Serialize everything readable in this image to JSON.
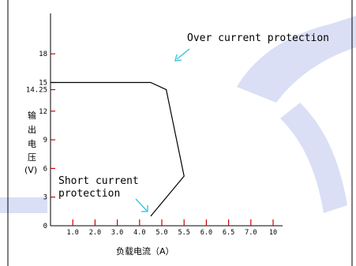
{
  "chart_data": {
    "type": "line",
    "series": [
      {
        "x": [
          0,
          4.5,
          5.2,
          6.0,
          4.5
        ],
        "y": [
          15,
          15,
          14.25,
          5.2,
          1.0
        ]
      }
    ],
    "xlabel": "负载电流（A）",
    "ylabel_chars": [
      "输",
      "出",
      "电",
      "压",
      "(V)"
    ],
    "y_ticks": [
      {
        "v": 0,
        "label": "0"
      },
      {
        "v": 3,
        "label": "3"
      },
      {
        "v": 6,
        "label": "6"
      },
      {
        "v": 9,
        "label": "9"
      },
      {
        "v": 12,
        "label": "12"
      },
      {
        "v": 14.25,
        "label": "14.25"
      },
      {
        "v": 15,
        "label": "15"
      },
      {
        "v": 18,
        "label": "18"
      }
    ],
    "x_ticks": [
      "1.0",
      "2.0",
      "3.0",
      "4.0",
      "5.0",
      "5.5",
      "6.0",
      "6.5",
      "7.0",
      "10"
    ],
    "ylim": [
      0,
      20
    ],
    "annotations": [
      {
        "lines": [
          "Over current protection"
        ]
      },
      {
        "lines": [
          "Short current",
          "protection"
        ]
      }
    ],
    "colors": {
      "tick": "#d00000",
      "arrow": "#2ec4d8",
      "watermark": "#d6dcf4"
    }
  }
}
